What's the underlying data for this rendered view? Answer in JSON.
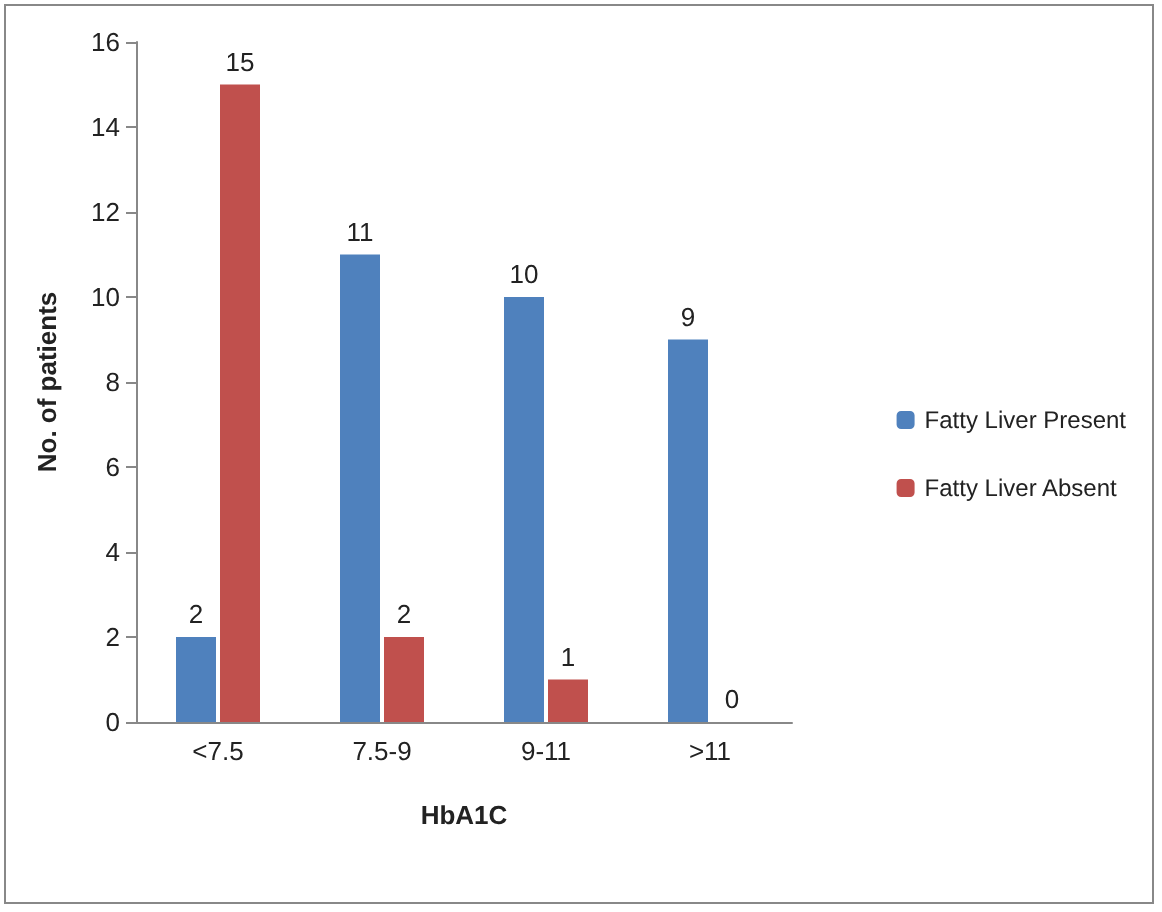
{
  "chart_data": {
    "type": "bar",
    "xlabel": "HbA1C",
    "ylabel": "No. of patients",
    "categories": [
      "<7.5",
      "7.5-9",
      "9-11",
      ">11"
    ],
    "series": [
      {
        "name": "Fatty Liver Present",
        "color": "#4f81bd",
        "values": [
          2,
          11,
          10,
          9
        ]
      },
      {
        "name": "Fatty Liver Absent",
        "color": "#c0504d",
        "values": [
          15,
          2,
          1,
          0
        ]
      }
    ],
    "ylim": [
      0,
      16
    ],
    "yticks": [
      0,
      2,
      4,
      6,
      8,
      10,
      12,
      14,
      16
    ],
    "grid": false,
    "legend": "right",
    "data_labels": true
  }
}
